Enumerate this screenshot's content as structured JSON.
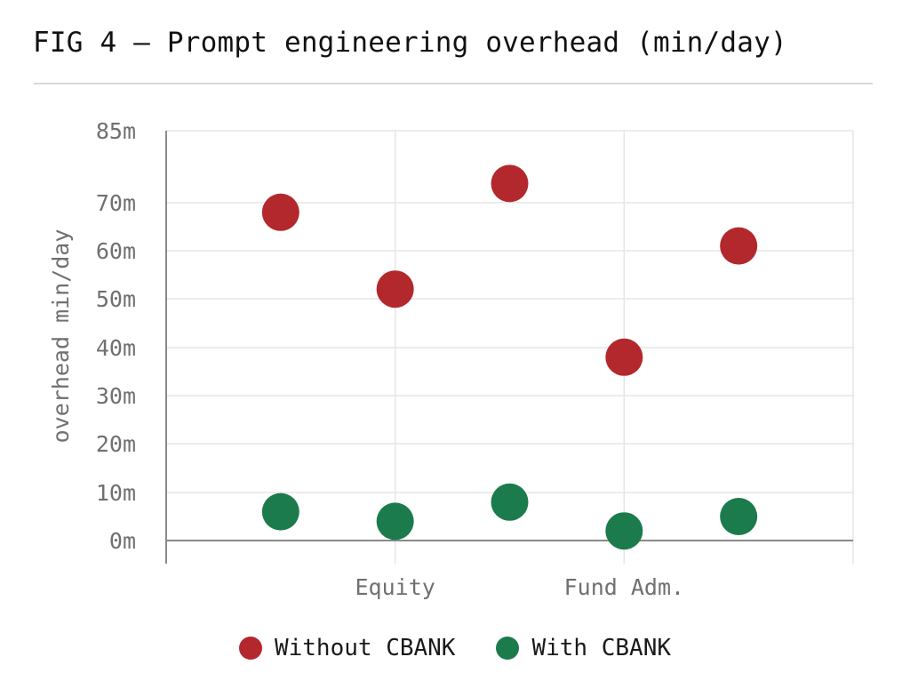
{
  "title": "FIG 4 – Prompt engineering overhead (min/day)",
  "chart_data": {
    "type": "scatter",
    "ylabel": "overhead min/day",
    "xlabel": "",
    "ylim": [
      0,
      85
    ],
    "y_ticks": [
      0,
      10,
      20,
      30,
      40,
      50,
      60,
      70,
      85
    ],
    "y_tick_labels": [
      "0m",
      "10m",
      "20m",
      "30m",
      "40m",
      "50m",
      "60m",
      "70m",
      "85m"
    ],
    "x_tick_labels": [
      "Equity",
      "Fund Adm."
    ],
    "grid": true,
    "legend_position": "bottom",
    "series": [
      {
        "name": "Without CBANK",
        "color": "#b3282d",
        "points": [
          {
            "x": 1,
            "y": 68
          },
          {
            "x": 2,
            "y": 52
          },
          {
            "x": 3,
            "y": 74
          },
          {
            "x": 4,
            "y": 38
          },
          {
            "x": 5,
            "y": 61
          }
        ]
      },
      {
        "name": "With CBANK",
        "color": "#1b7b4c",
        "points": [
          {
            "x": 1,
            "y": 6
          },
          {
            "x": 2,
            "y": 4
          },
          {
            "x": 3,
            "y": 8
          },
          {
            "x": 4,
            "y": 2
          },
          {
            "x": 5,
            "y": 5
          }
        ]
      }
    ]
  }
}
